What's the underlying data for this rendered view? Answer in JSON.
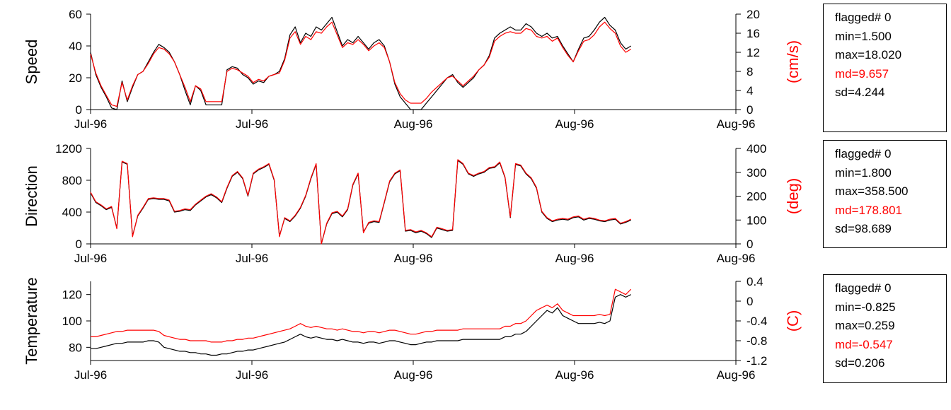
{
  "colors": {
    "measured": "#000000",
    "reference": "#ff0000",
    "axis": "#000000",
    "stats_md": "#ff0000"
  },
  "chart_data": [
    {
      "type": "line",
      "ylabel": "Speed",
      "ylabel_right": "(cm/s)",
      "x_tick_labels": [
        "Jul-96",
        "Jul-96",
        "Aug-96",
        "Aug-96",
        "Aug-96"
      ],
      "x": [
        0,
        1,
        2,
        3,
        4,
        5,
        6,
        7,
        8,
        9,
        10,
        11,
        12,
        13,
        14,
        15,
        16,
        17,
        18,
        19,
        20,
        21,
        22,
        23,
        24,
        25,
        26,
        27,
        28,
        29,
        30,
        31,
        32,
        33,
        34,
        35,
        36,
        37,
        38,
        39,
        40,
        41,
        42,
        43,
        44,
        45,
        46,
        47,
        48,
        49,
        50,
        51,
        52,
        53,
        54,
        55,
        56,
        57,
        58,
        59,
        60,
        61,
        62,
        63,
        64,
        65,
        66,
        67,
        68,
        69,
        70,
        71,
        72,
        73,
        74,
        75,
        76,
        77,
        78,
        79,
        80,
        81,
        82,
        83,
        84,
        85,
        86,
        87,
        88,
        89,
        90,
        91,
        92,
        93,
        94,
        95,
        96,
        97,
        98,
        99,
        100,
        101,
        102,
        103
      ],
      "xlim": [
        0,
        123
      ],
      "ylim": [
        0,
        60
      ],
      "yticks": [
        0,
        20,
        40,
        60
      ],
      "ylim_right": [
        0,
        20
      ],
      "yticks_right": [
        0,
        4,
        8,
        12,
        16,
        20
      ],
      "series": [
        {
          "values": [
            36,
            22,
            14,
            8,
            1,
            0,
            18,
            5,
            14,
            22,
            24,
            30,
            36,
            41,
            39,
            36,
            30,
            22,
            12,
            3,
            15,
            12,
            3,
            3,
            3,
            3,
            25,
            27,
            26,
            22,
            20,
            16,
            18,
            17,
            21,
            22,
            24,
            32,
            47,
            52,
            42,
            48,
            46,
            52,
            50,
            54,
            58,
            49,
            40,
            44,
            42,
            46,
            42,
            38,
            42,
            44,
            40,
            30,
            16,
            8,
            4,
            0,
            0,
            0,
            4,
            8,
            12,
            16,
            20,
            22,
            17,
            14,
            17,
            20,
            25,
            28,
            34,
            45,
            48,
            50,
            52,
            50,
            50,
            54,
            52,
            48,
            46,
            48,
            45,
            46,
            40,
            35,
            30,
            38,
            45,
            46,
            50,
            55,
            58,
            53,
            50,
            42,
            38,
            40
          ]
        },
        {
          "values": [
            35,
            23,
            15,
            9,
            3,
            2,
            17,
            6,
            15,
            22,
            24,
            29,
            35,
            39,
            38,
            35,
            30,
            22,
            14,
            5,
            15,
            13,
            5,
            5,
            5,
            5,
            24,
            26,
            25,
            23,
            21,
            17,
            19,
            18,
            21,
            22,
            23,
            31,
            45,
            49,
            41,
            46,
            44,
            49,
            48,
            52,
            55,
            47,
            39,
            42,
            41,
            44,
            41,
            37,
            40,
            42,
            39,
            30,
            17,
            10,
            6,
            4,
            4,
            4,
            7,
            11,
            14,
            17,
            20,
            21,
            18,
            15,
            18,
            21,
            25,
            28,
            33,
            43,
            46,
            48,
            49,
            48,
            48,
            51,
            50,
            46,
            45,
            46,
            43,
            45,
            39,
            34,
            30,
            37,
            43,
            44,
            47,
            52,
            55,
            51,
            48,
            40,
            36,
            38
          ]
        }
      ],
      "stats": {
        "flagged": "flagged# 0",
        "min": "min=1.500",
        "max": "max=18.020",
        "md": "md=9.657",
        "sd": "sd=4.244"
      }
    },
    {
      "type": "line",
      "ylabel": "Direction",
      "ylabel_right": "(deg)",
      "x_tick_labels": [
        "Jul-96",
        "Jul-96",
        "Aug-96",
        "Aug-96",
        "Aug-96"
      ],
      "x": [
        0,
        1,
        2,
        3,
        4,
        5,
        6,
        7,
        8,
        9,
        10,
        11,
        12,
        13,
        14,
        15,
        16,
        17,
        18,
        19,
        20,
        21,
        22,
        23,
        24,
        25,
        26,
        27,
        28,
        29,
        30,
        31,
        32,
        33,
        34,
        35,
        36,
        37,
        38,
        39,
        40,
        41,
        42,
        43,
        44,
        45,
        46,
        47,
        48,
        49,
        50,
        51,
        52,
        53,
        54,
        55,
        56,
        57,
        58,
        59,
        60,
        61,
        62,
        63,
        64,
        65,
        66,
        67,
        68,
        69,
        70,
        71,
        72,
        73,
        74,
        75,
        76,
        77,
        78,
        79,
        80,
        81,
        82,
        83,
        84,
        85,
        86,
        87,
        88,
        89,
        90,
        91,
        92,
        93,
        94,
        95,
        96,
        97,
        98,
        99,
        100,
        101,
        102,
        103
      ],
      "xlim": [
        0,
        123
      ],
      "ylim": [
        0,
        1200
      ],
      "yticks": [
        0,
        400,
        800,
        1200
      ],
      "ylim_right": [
        0,
        400
      ],
      "yticks_right": [
        0,
        100,
        200,
        300,
        400
      ],
      "series": [
        {
          "values": [
            640,
            520,
            480,
            430,
            460,
            200,
            1030,
            1000,
            100,
            350,
            450,
            560,
            570,
            560,
            560,
            540,
            400,
            410,
            430,
            420,
            490,
            540,
            590,
            620,
            580,
            520,
            700,
            850,
            900,
            820,
            600,
            880,
            930,
            960,
            1000,
            800,
            100,
            320,
            280,
            350,
            450,
            600,
            820,
            1000,
            0,
            250,
            380,
            400,
            340,
            430,
            740,
            880,
            150,
            260,
            280,
            270,
            520,
            780,
            880,
            920,
            160,
            170,
            140,
            160,
            130,
            80,
            200,
            180,
            160,
            170,
            1050,
            1000,
            880,
            850,
            880,
            900,
            950,
            960,
            1020,
            830,
            330,
            1000,
            980,
            880,
            820,
            700,
            400,
            320,
            280,
            300,
            310,
            300,
            330,
            340,
            300,
            320,
            310,
            290,
            280,
            300,
            310,
            250,
            270,
            300
          ]
        },
        {
          "values": [
            650,
            530,
            490,
            440,
            470,
            190,
            1040,
            1010,
            90,
            360,
            460,
            570,
            580,
            570,
            570,
            550,
            410,
            420,
            440,
            430,
            500,
            550,
            600,
            630,
            590,
            530,
            710,
            860,
            910,
            830,
            610,
            890,
            940,
            970,
            1010,
            810,
            90,
            330,
            290,
            360,
            460,
            610,
            830,
            1010,
            0,
            260,
            390,
            410,
            350,
            440,
            750,
            890,
            140,
            270,
            290,
            280,
            530,
            790,
            890,
            930,
            170,
            180,
            150,
            170,
            140,
            90,
            210,
            190,
            170,
            180,
            1060,
            1010,
            890,
            860,
            890,
            910,
            960,
            970,
            1030,
            840,
            340,
            1010,
            990,
            890,
            830,
            710,
            410,
            330,
            290,
            310,
            320,
            310,
            340,
            350,
            310,
            330,
            320,
            300,
            290,
            310,
            320,
            260,
            280,
            310
          ]
        }
      ],
      "stats": {
        "flagged": "flagged# 0",
        "min": "min=1.800",
        "max": "max=358.500",
        "md": "md=178.801",
        "sd": "sd=98.689"
      }
    },
    {
      "type": "line",
      "ylabel": "Temperature",
      "ylabel_right": "(C)",
      "x_tick_labels": [
        "Jul-96",
        "Jul-96",
        "Aug-96",
        "Aug-96",
        "Aug-96"
      ],
      "x": [
        0,
        1,
        2,
        3,
        4,
        5,
        6,
        7,
        8,
        9,
        10,
        11,
        12,
        13,
        14,
        15,
        16,
        17,
        18,
        19,
        20,
        21,
        22,
        23,
        24,
        25,
        26,
        27,
        28,
        29,
        30,
        31,
        32,
        33,
        34,
        35,
        36,
        37,
        38,
        39,
        40,
        41,
        42,
        43,
        44,
        45,
        46,
        47,
        48,
        49,
        50,
        51,
        52,
        53,
        54,
        55,
        56,
        57,
        58,
        59,
        60,
        61,
        62,
        63,
        64,
        65,
        66,
        67,
        68,
        69,
        70,
        71,
        72,
        73,
        74,
        75,
        76,
        77,
        78,
        79,
        80,
        81,
        82,
        83,
        84,
        85,
        86,
        87,
        88,
        89,
        90,
        91,
        92,
        93,
        94,
        95,
        96,
        97,
        98,
        99,
        100,
        101,
        102,
        103
      ],
      "xlim": [
        0,
        123
      ],
      "ylim": [
        70,
        130
      ],
      "yticks": [
        80,
        100,
        120
      ],
      "ylim_right": [
        -1.2,
        0.4
      ],
      "yticks_right": [
        -1.2,
        -0.8,
        -0.4,
        0,
        0.4
      ],
      "series": [
        {
          "values": [
            79,
            79,
            80,
            81,
            82,
            83,
            83,
            84,
            84,
            84,
            84,
            85,
            85,
            84,
            80,
            79,
            78,
            77,
            77,
            76,
            76,
            75,
            75,
            74,
            74,
            75,
            75,
            76,
            77,
            77,
            78,
            78,
            79,
            80,
            81,
            82,
            83,
            84,
            86,
            88,
            90,
            88,
            87,
            88,
            87,
            86,
            86,
            85,
            86,
            85,
            84,
            84,
            83,
            84,
            84,
            83,
            84,
            85,
            85,
            84,
            83,
            82,
            82,
            83,
            84,
            84,
            85,
            85,
            85,
            85,
            85,
            86,
            86,
            86,
            86,
            86,
            86,
            86,
            86,
            88,
            88,
            90,
            90,
            92,
            96,
            100,
            104,
            108,
            106,
            110,
            104,
            102,
            100,
            98,
            98,
            98,
            98,
            99,
            98,
            100,
            118,
            120,
            118,
            120
          ]
        },
        {
          "values": [
            88,
            88,
            89,
            90,
            91,
            92,
            92,
            93,
            93,
            93,
            93,
            93,
            93,
            92,
            89,
            88,
            87,
            86,
            86,
            85,
            85,
            85,
            85,
            84,
            84,
            84,
            85,
            85,
            86,
            86,
            87,
            87,
            88,
            89,
            90,
            91,
            92,
            93,
            94,
            96,
            98,
            96,
            95,
            96,
            95,
            94,
            94,
            93,
            94,
            93,
            92,
            92,
            91,
            92,
            92,
            91,
            92,
            93,
            93,
            92,
            91,
            90,
            90,
            91,
            92,
            92,
            93,
            93,
            93,
            93,
            93,
            94,
            94,
            94,
            94,
            94,
            94,
            94,
            94,
            96,
            96,
            98,
            98,
            100,
            104,
            108,
            110,
            112,
            110,
            113,
            108,
            106,
            104,
            104,
            104,
            104,
            104,
            105,
            104,
            105,
            124,
            122,
            120,
            124
          ]
        }
      ],
      "stats": {
        "flagged": "flagged# 0",
        "min": "min=-0.825",
        "max": "max=0.259",
        "md": "md=-0.547",
        "sd": "sd=0.206"
      }
    }
  ]
}
